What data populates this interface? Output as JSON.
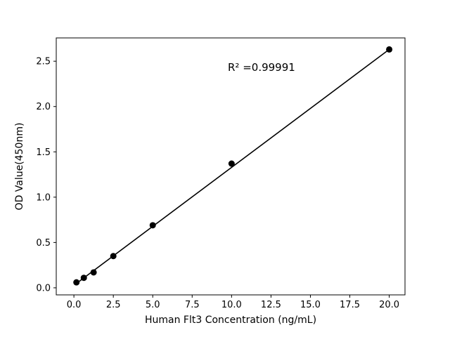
{
  "figure": {
    "background": "#ffffff"
  },
  "chart_data": {
    "type": "scatter",
    "title": "",
    "xlabel": "Human Flt3 Concentration (ng/mL)",
    "ylabel": "OD Value(450nm)",
    "annotation": "R² =0.99991",
    "x": [
      0.16,
      0.63,
      1.25,
      2.5,
      5.0,
      10.0,
      20.0
    ],
    "y": [
      0.06,
      0.11,
      0.17,
      0.35,
      0.69,
      1.37,
      2.63
    ],
    "fit_line": {
      "x": [
        0.1,
        20.0
      ],
      "y": [
        0.04,
        2.63
      ]
    },
    "xlim": [
      -1.12,
      21.0
    ],
    "ylim": [
      -0.078,
      2.757
    ],
    "xticks": [
      0.0,
      2.5,
      5.0,
      7.5,
      10.0,
      12.5,
      15.0,
      17.5,
      20.0
    ],
    "xtick_labels": [
      "0.0",
      "2.5",
      "5.0",
      "7.5",
      "10.0",
      "12.5",
      "15.0",
      "17.5",
      "20.0"
    ],
    "yticks": [
      0.0,
      0.5,
      1.0,
      1.5,
      2.0,
      2.5
    ],
    "ytick_labels": [
      "0.0",
      "0.5",
      "1.0",
      "1.5",
      "2.0",
      "2.5"
    ],
    "marker_color": "#000000",
    "line_color": "#000000",
    "axis_color": "#000000",
    "grid": false,
    "legend": "none"
  }
}
